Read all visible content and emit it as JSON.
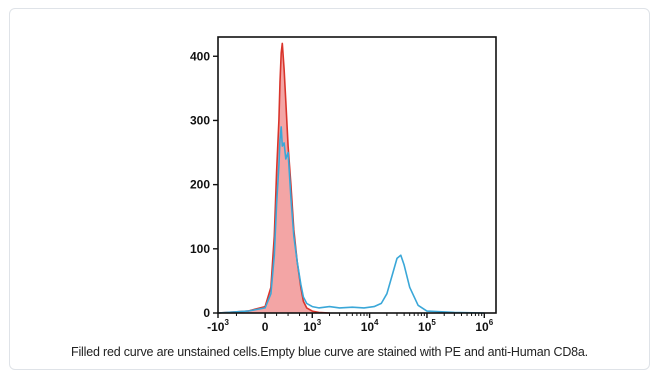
{
  "caption": "Filled red curve are unstained cells.Empty blue curve are stained with PE and anti-Human CD8a.",
  "chart_data": {
    "type": "area",
    "title": "",
    "xlabel": "",
    "ylabel": "",
    "xscale": "biexponential",
    "ylim": [
      0,
      430
    ],
    "yticks": [
      0,
      100,
      200,
      300,
      400
    ],
    "xticks": [
      {
        "base": "-10",
        "exp": "3"
      },
      {
        "base": "0",
        "exp": ""
      },
      {
        "base": "10",
        "exp": "3"
      },
      {
        "base": "10",
        "exp": "4"
      },
      {
        "base": "10",
        "exp": "5"
      },
      {
        "base": "10",
        "exp": "6"
      }
    ],
    "grid": false,
    "colors": {
      "filled": "#f3a5a5",
      "filled_line": "#d9342b",
      "empty_line": "#3aa7d8"
    },
    "series": [
      {
        "style": "filled",
        "x": [
          -1000,
          -300,
          0,
          100,
          160,
          200,
          240,
          260,
          280,
          300,
          330,
          360,
          400,
          450,
          500,
          560,
          630,
          700,
          800,
          1000,
          1300,
          2000
        ],
        "y": [
          0,
          3,
          10,
          40,
          120,
          220,
          300,
          360,
          405,
          420,
          380,
          330,
          260,
          200,
          130,
          80,
          40,
          18,
          8,
          3,
          1,
          0
        ]
      },
      {
        "style": "line",
        "x": [
          -1000,
          -300,
          0,
          100,
          160,
          200,
          240,
          260,
          280,
          300,
          330,
          360,
          400,
          450,
          500,
          560,
          630,
          700,
          800,
          1000,
          1300,
          2000,
          3000,
          5000,
          8000,
          12000,
          16000,
          20000,
          25000,
          30000,
          35000,
          40000,
          50000,
          70000,
          100000,
          300000,
          1000000
        ],
        "y": [
          0,
          3,
          8,
          30,
          90,
          170,
          230,
          270,
          290,
          260,
          265,
          240,
          250,
          180,
          120,
          80,
          45,
          25,
          15,
          10,
          8,
          10,
          8,
          9,
          8,
          10,
          15,
          30,
          60,
          85,
          90,
          75,
          40,
          12,
          3,
          1,
          0
        ]
      }
    ]
  }
}
